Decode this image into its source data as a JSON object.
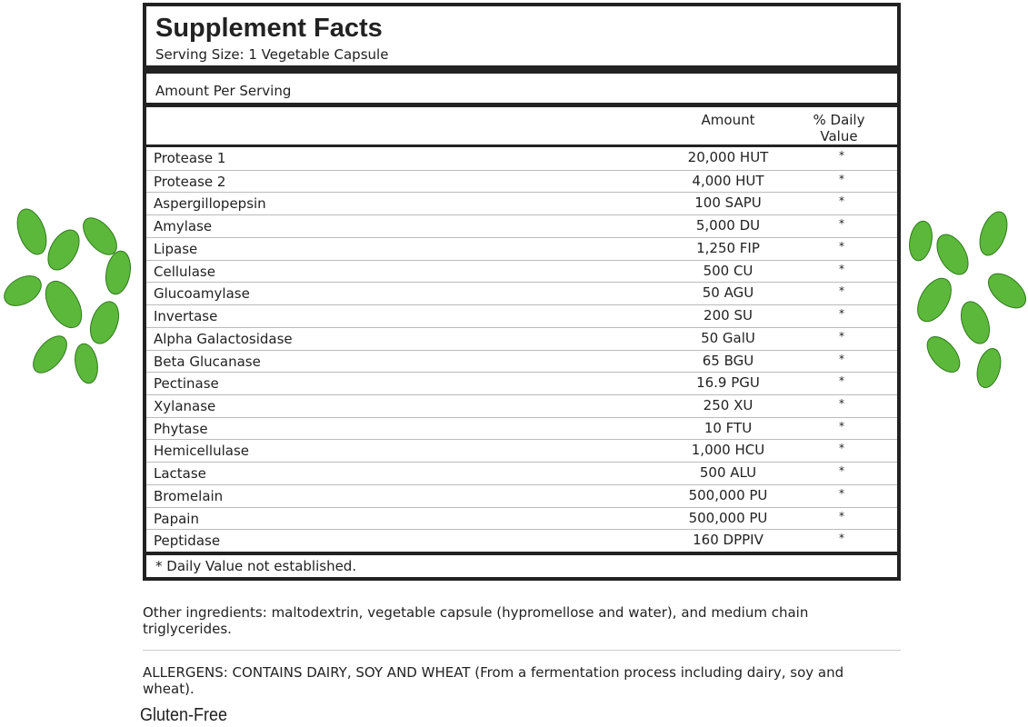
{
  "header": {
    "title": "Supplement Facts",
    "serving_size": "Serving Size: 1 Vegetable Capsule"
  },
  "amount_per_serving": "Amount Per Serving",
  "table": {
    "columns": [
      "Amount",
      "% Daily Value"
    ],
    "rows": [
      [
        "Protease 1",
        "20,000 HUT",
        "*"
      ],
      [
        "Protease 2",
        "4,000 HUT",
        "*"
      ],
      [
        "Aspergillopepsin",
        "100 SAPU",
        "*"
      ],
      [
        "Amylase",
        "5,000 DU",
        "*"
      ],
      [
        "Lipase",
        "1,250 FIP",
        "*"
      ],
      [
        "Cellulase",
        "500 CU",
        "*"
      ],
      [
        "Glucoamylase",
        "50 AGU",
        "*"
      ],
      [
        "Invertase",
        "200 SU",
        "*"
      ],
      [
        "Alpha Galactosidase",
        "50 GalU",
        "*"
      ],
      [
        "Beta Glucanase",
        "65 BGU",
        "*"
      ],
      [
        "Pectinase",
        "16.9 PGU",
        "*"
      ],
      [
        "Xylanase",
        "250 XU",
        "*"
      ],
      [
        "Phytase",
        "10 FTU",
        "*"
      ],
      [
        "Hemicellulase",
        "1,000 HCU",
        "*"
      ],
      [
        "Lactase",
        "500 ALU",
        "*"
      ],
      [
        "Bromelain",
        "500,000 PU",
        "*"
      ],
      [
        "Papain",
        "500,000 PU",
        "*"
      ],
      [
        "Peptidase",
        "160 DPPIV",
        "*"
      ]
    ]
  },
  "footnote": "* Daily Value not established.",
  "other_ingredients": "Other ingredients: maltodextrin, vegetable capsule (hypromellose and water), and medium chain triglycerides.",
  "allergens": "ALLERGENS: CONTAINS DAIRY, SOY AND WHEAT (From a fermentation process including dairy, soy and wheat).",
  "gluten_free": "Gluten-Free"
}
